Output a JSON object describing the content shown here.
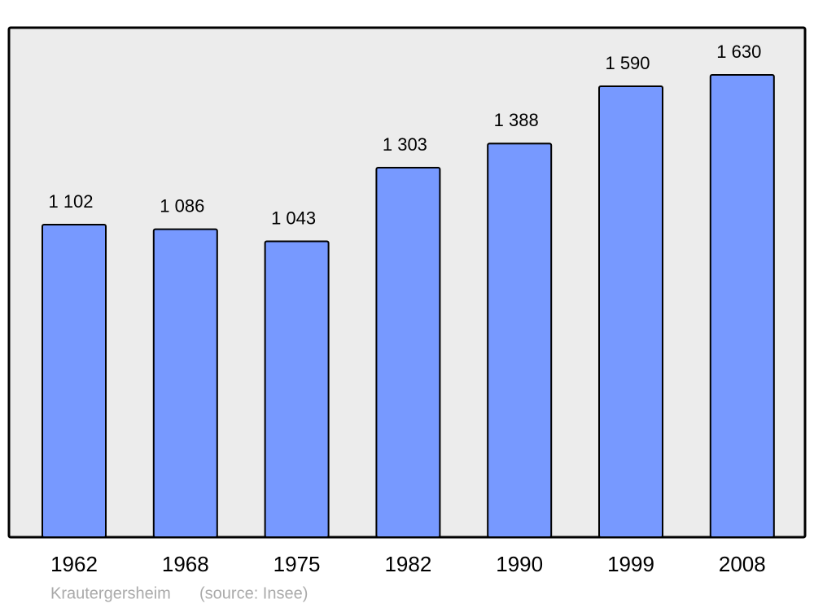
{
  "chart_data": {
    "type": "bar",
    "categories": [
      "1962",
      "1968",
      "1975",
      "1982",
      "1990",
      "1999",
      "2008"
    ],
    "values": [
      1102,
      1086,
      1043,
      1303,
      1388,
      1590,
      1630
    ],
    "value_labels": [
      "1 102",
      "1 086",
      "1 043",
      "1 303",
      "1 388",
      "1 590",
      "1 630"
    ],
    "color": "#7799ff",
    "caption": "Krautergersheim",
    "source": "(source: Insee)"
  }
}
